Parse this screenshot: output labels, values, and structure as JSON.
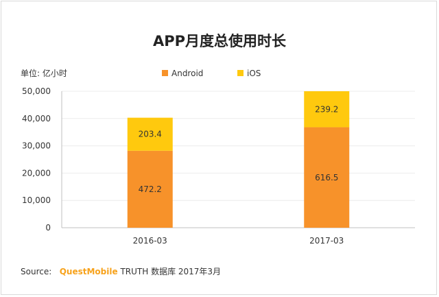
{
  "chart_data": {
    "type": "bar",
    "stacked": true,
    "title": "APP月度总使用时长",
    "unit_label": "单位: 亿小时",
    "categories": [
      "2016-03",
      "2017-03"
    ],
    "series": [
      {
        "name": "Android",
        "color": "#f7922a",
        "values": [
          472.2,
          616.5
        ],
        "display_heights": [
          28200,
          36800
        ]
      },
      {
        "name": "iOS",
        "color": "#ffc90e",
        "values": [
          203.4,
          239.2
        ],
        "display_heights": [
          12100,
          13200
        ]
      }
    ],
    "ylim": [
      0,
      50000
    ],
    "yticks": [
      "50,000",
      "40,000",
      "30,000",
      "20,000",
      "10,000",
      "0"
    ],
    "ytick_values": [
      50000,
      40000,
      30000,
      20000,
      10000,
      0
    ],
    "grid": true,
    "legend_position": "top-center"
  },
  "source": {
    "prefix": "Source:",
    "brand": "QuestMobile",
    "rest": "TRUTH 数据库 2017年3月"
  }
}
